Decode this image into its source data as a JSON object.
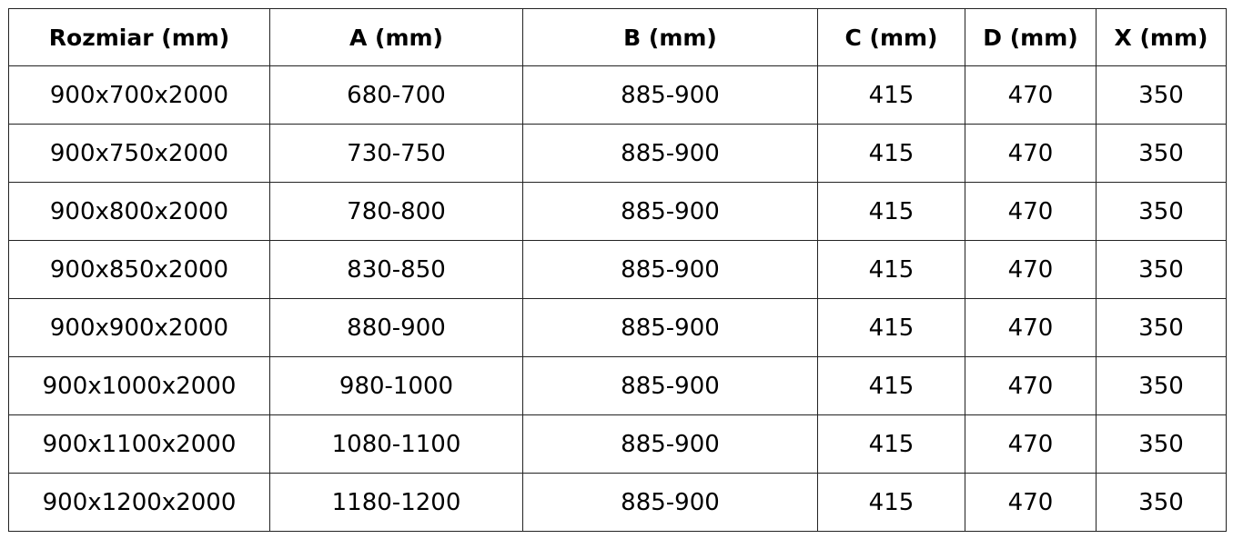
{
  "table": {
    "header": [
      "Rozmiar (mm)",
      "A (mm)",
      "B (mm)",
      "C (mm)",
      "D (mm)",
      "X (mm)"
    ],
    "rows": [
      [
        "900x700x2000",
        "680-700",
        "885-900",
        "415",
        "470",
        "350"
      ],
      [
        "900x750x2000",
        "730-750",
        "885-900",
        "415",
        "470",
        "350"
      ],
      [
        "900x800x2000",
        "780-800",
        "885-900",
        "415",
        "470",
        "350"
      ],
      [
        "900x850x2000",
        "830-850",
        "885-900",
        "415",
        "470",
        "350"
      ],
      [
        "900x900x2000",
        "880-900",
        "885-900",
        "415",
        "470",
        "350"
      ],
      [
        "900x1000x2000",
        "980-1000",
        "885-900",
        "415",
        "470",
        "350"
      ],
      [
        "900x1100x2000",
        "1080-1100",
        "885-900",
        "415",
        "470",
        "350"
      ],
      [
        "900x1200x2000",
        "1180-1200",
        "885-900",
        "415",
        "470",
        "350"
      ]
    ]
  }
}
